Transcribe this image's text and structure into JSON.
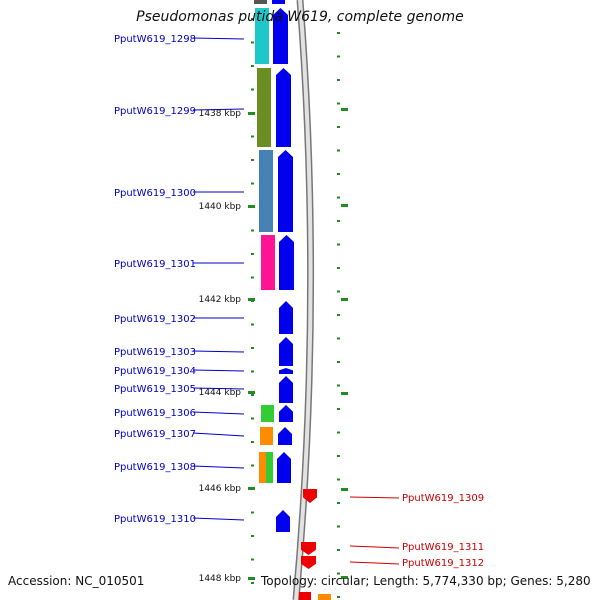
{
  "title": "Pseudomonas putida W619, complete genome",
  "accession_label": "Accession: NC_010501",
  "topology_label": "Topology: circular; Length: 5,774,330 bp; Genes: 5,280",
  "colors": {
    "left_label": "#0000cc",
    "right_label": "#cc0000",
    "forward_gene": "#0000ee",
    "reverse_gene": "#ee0000",
    "tick": "#228b22",
    "backbone": "#999999"
  },
  "scale_ticks": [
    "1438 kbp",
    "1440 kbp",
    "1442 kbp",
    "1444 kbp",
    "1446 kbp",
    "1448 kbp"
  ],
  "genes": [
    {
      "name": "PputW619_1298",
      "side": "left",
      "strand": "+",
      "cog_color": "#1ec8c8"
    },
    {
      "name": "PputW619_1299",
      "side": "left",
      "strand": "+",
      "cog_color": "#6b8e23"
    },
    {
      "name": "PputW619_1300",
      "side": "left",
      "strand": "+",
      "cog_color": "#4682b4"
    },
    {
      "name": "PputW619_1301",
      "side": "left",
      "strand": "+",
      "cog_color": "#ff1493"
    },
    {
      "name": "PputW619_1302",
      "side": "left",
      "strand": "+",
      "cog_color": ""
    },
    {
      "name": "PputW619_1303",
      "side": "left",
      "strand": "+",
      "cog_color": ""
    },
    {
      "name": "PputW619_1304",
      "side": "left",
      "strand": "+",
      "cog_color": ""
    },
    {
      "name": "PputW619_1305",
      "side": "left",
      "strand": "+",
      "cog_color": ""
    },
    {
      "name": "PputW619_1306",
      "side": "left",
      "strand": "+",
      "cog_color": "#32cd32"
    },
    {
      "name": "PputW619_1307",
      "side": "left",
      "strand": "+",
      "cog_color": "#ff8c00"
    },
    {
      "name": "PputW619_1308",
      "side": "left",
      "strand": "+",
      "cog_color": "#ff8c00 #32cd32"
    },
    {
      "name": "PputW619_1309",
      "side": "right",
      "strand": "-",
      "cog_color": ""
    },
    {
      "name": "PputW619_1310",
      "side": "left",
      "strand": "+",
      "cog_color": ""
    },
    {
      "name": "PputW619_1311",
      "side": "right",
      "strand": "-",
      "cog_color": ""
    },
    {
      "name": "PputW619_1312",
      "side": "right",
      "strand": "-",
      "cog_color": ""
    }
  ]
}
